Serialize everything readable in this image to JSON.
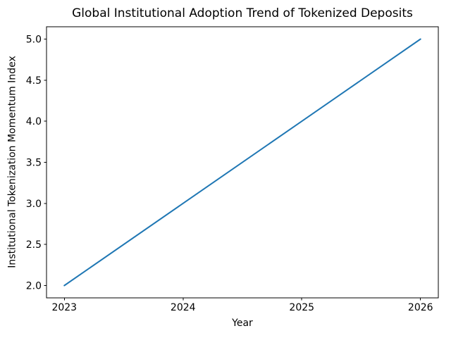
{
  "chart_data": {
    "type": "line",
    "title": "Global Institutional Adoption Trend of Tokenized Deposits",
    "xlabel": "Year",
    "ylabel": "Institutional Tokenization Momentum Index",
    "x": [
      2023,
      2024,
      2025,
      2026
    ],
    "values": [
      2.0,
      3.0,
      4.0,
      5.0
    ],
    "xticks": [
      2023,
      2024,
      2025,
      2026
    ],
    "xtick_labels": [
      "2023",
      "2024",
      "2025",
      "2026"
    ],
    "yticks": [
      2.0,
      2.5,
      3.0,
      3.5,
      4.0,
      4.5,
      5.0
    ],
    "ytick_labels": [
      "2.0",
      "2.5",
      "3.0",
      "3.5",
      "4.0",
      "4.5",
      "5.0"
    ],
    "xlim": [
      2022.85,
      2026.15
    ],
    "ylim": [
      1.85,
      5.15
    ],
    "grid": false,
    "legend": "none",
    "line_color": "#1f77b4",
    "line_width": 2,
    "axis_color": "#000000",
    "text_color": "#000000",
    "background": "#ffffff"
  }
}
